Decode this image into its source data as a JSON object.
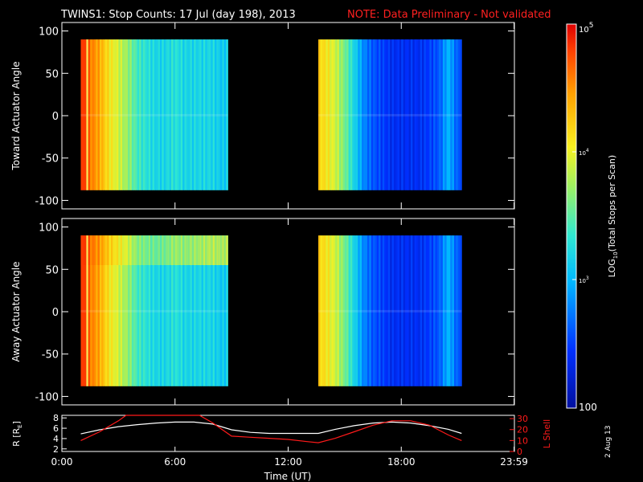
{
  "header": {
    "title": "TWINS1: Stop Counts: 17 Jul (day 198), 2013",
    "note": "NOTE: Data Preliminary - Not validated"
  },
  "footer": {
    "date_stamp": "2 Aug 13"
  },
  "colors": {
    "background": "#000000",
    "foreground": "#ffffff",
    "note": "#ff2020",
    "r_line": "#ffffff",
    "lshell_line": "#ff1a1a"
  },
  "chart_data": [
    {
      "type": "heatmap",
      "panel": "toward",
      "ylabel": "Toward Actuator Angle",
      "xlim": [
        0,
        24
      ],
      "ylim": [
        -110,
        110
      ],
      "y_ticks": [
        100,
        50,
        0,
        -50,
        -100
      ],
      "data_range_y": [
        -88,
        90
      ],
      "data_segments_ut": [
        [
          1.0,
          8.8
        ],
        [
          13.6,
          21.2
        ]
      ],
      "description_values": "LOG10 counts by time and angle; colour scale 100 to 1e5",
      "profile_ut": [
        1.0,
        1.5,
        2.0,
        2.5,
        3.0,
        3.5,
        4.0,
        4.5,
        5.0,
        5.5,
        6.0,
        6.5,
        7.0,
        7.5,
        8.0,
        8.5,
        13.6,
        14.0,
        14.5,
        15.0,
        15.5,
        16.0,
        16.5,
        17.0,
        17.5,
        18.0,
        18.5,
        19.0,
        19.5,
        20.0,
        20.5,
        21.0
      ],
      "profile_log_counts": [
        4.9,
        4.6,
        4.4,
        4.1,
        3.9,
        3.7,
        3.4,
        3.3,
        3.2,
        3.2,
        3.3,
        3.2,
        3.2,
        3.2,
        3.2,
        3.1,
        4.2,
        4.1,
        3.9,
        3.6,
        3.2,
        2.8,
        2.6,
        2.5,
        2.4,
        2.4,
        2.4,
        2.4,
        2.5,
        2.6,
        3.0,
        2.6
      ]
    },
    {
      "type": "heatmap",
      "panel": "away",
      "ylabel": "Away Actuator Angle",
      "xlim": [
        0,
        24
      ],
      "ylim": [
        -110,
        110
      ],
      "y_ticks": [
        100,
        50,
        0,
        -50,
        -100
      ],
      "data_range_y": [
        -88,
        90
      ],
      "data_segments_ut": [
        [
          1.0,
          8.8
        ],
        [
          13.6,
          21.2
        ]
      ],
      "profile_ut": [
        1.0,
        1.5,
        2.0,
        2.5,
        3.0,
        3.5,
        4.0,
        4.5,
        5.0,
        5.5,
        6.0,
        6.5,
        7.0,
        7.5,
        8.0,
        8.5,
        13.6,
        14.0,
        14.5,
        15.0,
        15.5,
        16.0,
        16.5,
        17.0,
        17.5,
        18.0,
        18.5,
        19.0,
        19.5,
        20.0,
        20.5,
        21.0
      ],
      "profile_log_counts": [
        4.9,
        4.6,
        4.4,
        4.1,
        3.9,
        3.7,
        3.4,
        3.3,
        3.2,
        3.2,
        3.3,
        3.2,
        3.2,
        3.2,
        3.2,
        3.1,
        4.2,
        4.1,
        3.9,
        3.6,
        3.2,
        2.8,
        2.6,
        2.5,
        2.4,
        2.4,
        2.4,
        2.4,
        2.5,
        2.6,
        3.0,
        2.6
      ],
      "high_band_angle": [
        55,
        90
      ],
      "high_band_ut": [
        1.0,
        8.8
      ]
    },
    {
      "type": "line",
      "panel": "orbit",
      "xlabel": "Time (UT)",
      "ylabel_left": "R [R",
      "ylabel_left_sub": "E",
      "ylabel_left_close": "]",
      "ylabel_right": "L Shell",
      "x_ticks": [
        "0:00",
        "6:00",
        "12:00",
        "18:00",
        "23:59"
      ],
      "x_tick_values": [
        0,
        6,
        12,
        18,
        23.983
      ],
      "y_left_ticks": [
        8,
        6,
        4,
        2
      ],
      "y_left_range": [
        1.5,
        8.5
      ],
      "y_right_ticks": [
        30,
        20,
        10,
        0
      ],
      "y_right_range": [
        0,
        33
      ],
      "series": [
        {
          "axis": "left",
          "x": [
            1.0,
            2.0,
            3.0,
            4.0,
            5.0,
            6.0,
            7.0,
            8.0,
            9.0,
            10.0,
            11.0,
            12.0,
            13.0,
            13.6,
            14.5,
            15.5,
            16.5,
            17.5,
            18.5,
            19.5,
            20.5,
            21.2
          ],
          "values": [
            4.9,
            5.7,
            6.3,
            6.7,
            7.0,
            7.2,
            7.2,
            6.8,
            5.7,
            5.2,
            5.0,
            5.0,
            5.0,
            5.0,
            5.8,
            6.5,
            7.0,
            7.2,
            7.0,
            6.5,
            5.8,
            5.0
          ]
        },
        {
          "axis": "right",
          "x": [
            1.0,
            2.0,
            3.0,
            3.4,
            7.3,
            8.0,
            9.0,
            10.0,
            11.0,
            12.0,
            13.0,
            13.6,
            14.5,
            15.5,
            16.5,
            17.5,
            18.5,
            19.5,
            20.5,
            21.2
          ],
          "values": [
            10,
            18,
            28,
            33,
            33,
            26,
            14,
            13,
            12,
            11,
            9,
            8,
            12,
            18,
            24,
            28,
            28,
            24,
            15,
            10
          ]
        }
      ]
    }
  ],
  "colorbar": {
    "label": "LOG",
    "label_sub": "10",
    "label_rest": "(Total Stops per Scan)",
    "top_label": "10",
    "top_label_sup": "5",
    "mid1_label": "10",
    "mid1_label_sup": "4",
    "mid2_label": "10",
    "mid2_label_sup": "3",
    "bottom_label": "100",
    "range_log": [
      2,
      5
    ]
  }
}
